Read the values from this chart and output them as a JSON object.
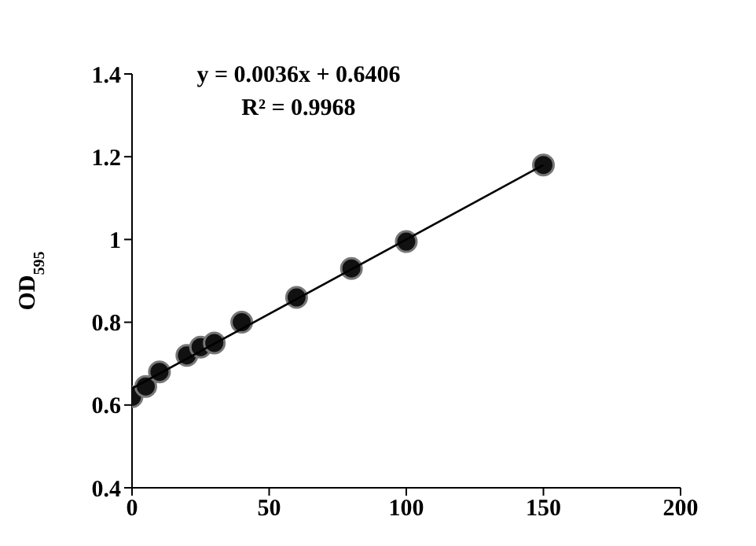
{
  "chart_data": {
    "type": "scatter",
    "ylabel": "OD$_{595}$",
    "xlim": [
      0,
      200
    ],
    "xticks": [
      0,
      50,
      100,
      150,
      200
    ],
    "ylim": [
      0.4,
      1.4
    ],
    "yticks": [
      0.4,
      0.6,
      0.8,
      1,
      1.2,
      1.4
    ],
    "grid": false,
    "annotations": [
      "y = 0.0036x + 0.6406",
      "R² = 0.9968"
    ],
    "series": [
      {
        "marker": "circle",
        "color": "#111111",
        "x": [
          0,
          5,
          10,
          20,
          25,
          30,
          40,
          60,
          80,
          100,
          150
        ],
        "values": [
          0.62,
          0.645,
          0.68,
          0.72,
          0.74,
          0.75,
          0.8,
          0.86,
          0.93,
          0.995,
          1.18
        ]
      },
      {
        "type": "line",
        "marker": "none",
        "color": "#000000",
        "line_style": "solid",
        "x": [
          0,
          150
        ],
        "values": [
          0.64,
          1.18
        ]
      }
    ]
  }
}
